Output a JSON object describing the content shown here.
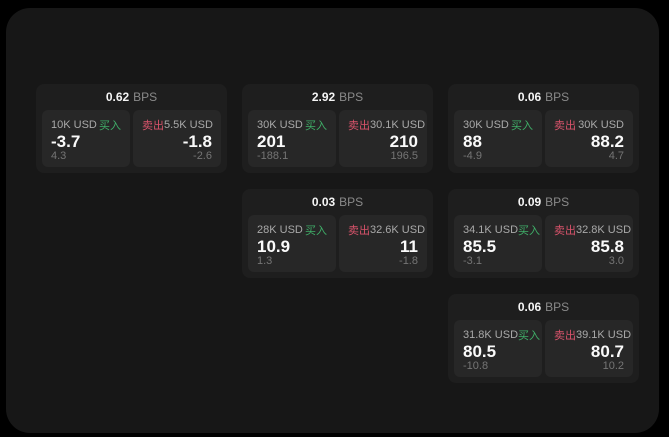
{
  "labels": {
    "bps_unit": "BPS",
    "buy": "买入",
    "sell": "卖出"
  },
  "colors": {
    "page_bg": "#000000",
    "panel_bg": "#171717",
    "card_bg": "#1e1e1e",
    "tile_bg": "#272727",
    "buy": "#3fae68",
    "sell": "#d9536b"
  },
  "cards": [
    {
      "row": 1,
      "col": 1,
      "bps": "0.62",
      "buy": {
        "amount": "10K USD",
        "price": "-3.7",
        "delta": "4.3"
      },
      "sell": {
        "amount": "5.5K USD",
        "price": "-1.8",
        "delta": "-2.6"
      }
    },
    {
      "row": 1,
      "col": 2,
      "bps": "2.92",
      "buy": {
        "amount": "30K USD",
        "price": "201",
        "delta": "-188.1"
      },
      "sell": {
        "amount": "30.1K USD",
        "price": "210",
        "delta": "196.5"
      }
    },
    {
      "row": 1,
      "col": 3,
      "bps": "0.06",
      "buy": {
        "amount": "30K USD",
        "price": "88",
        "delta": "-4.9"
      },
      "sell": {
        "amount": "30K USD",
        "price": "88.2",
        "delta": "4.7"
      }
    },
    {
      "row": 2,
      "col": 2,
      "bps": "0.03",
      "buy": {
        "amount": "28K USD",
        "price": "10.9",
        "delta": "1.3"
      },
      "sell": {
        "amount": "32.6K USD",
        "price": "11",
        "delta": "-1.8"
      }
    },
    {
      "row": 2,
      "col": 3,
      "bps": "0.09",
      "buy": {
        "amount": "34.1K USD",
        "price": "85.5",
        "delta": "-3.1"
      },
      "sell": {
        "amount": "32.8K USD",
        "price": "85.8",
        "delta": "3.0"
      }
    },
    {
      "row": 3,
      "col": 3,
      "bps": "0.06",
      "buy": {
        "amount": "31.8K USD",
        "price": "80.5",
        "delta": "-10.8"
      },
      "sell": {
        "amount": "39.1K USD",
        "price": "80.7",
        "delta": "10.2"
      }
    }
  ]
}
